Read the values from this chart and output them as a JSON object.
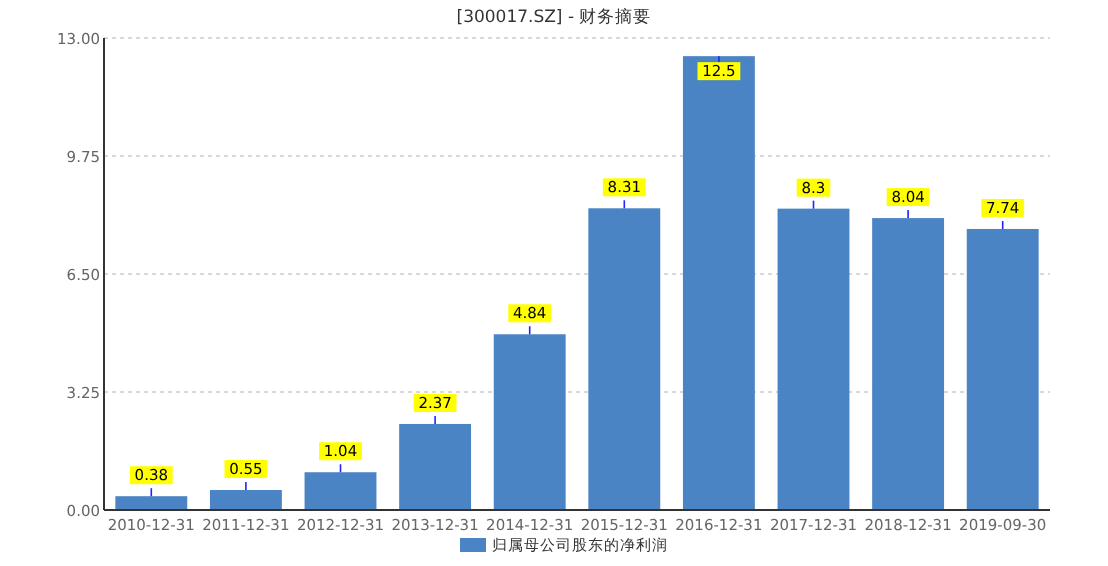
{
  "chart_data": {
    "type": "bar",
    "title": "[300017.SZ] - 财务摘要",
    "categories": [
      "2010-12-31",
      "2011-12-31",
      "2012-12-31",
      "2013-12-31",
      "2014-12-31",
      "2015-12-31",
      "2016-12-31",
      "2017-12-31",
      "2018-12-31",
      "2019-09-30"
    ],
    "series": [
      {
        "name": "归属母公司股东的净利润",
        "color": "#4a84c4",
        "values": [
          0.38,
          0.55,
          1.04,
          2.37,
          4.84,
          8.31,
          12.5,
          8.3,
          8.04,
          7.74
        ]
      }
    ],
    "ylim": [
      0,
      13
    ],
    "yticks": [
      {
        "value": 0,
        "label": "0.00"
      },
      {
        "value": 3.25,
        "label": "3.25"
      },
      {
        "value": 6.5,
        "label": "6.50"
      },
      {
        "value": 9.75,
        "label": "9.75"
      },
      {
        "value": 13,
        "label": "13.00"
      }
    ],
    "grid": "y",
    "legend": "bottom",
    "data_labels": true
  }
}
